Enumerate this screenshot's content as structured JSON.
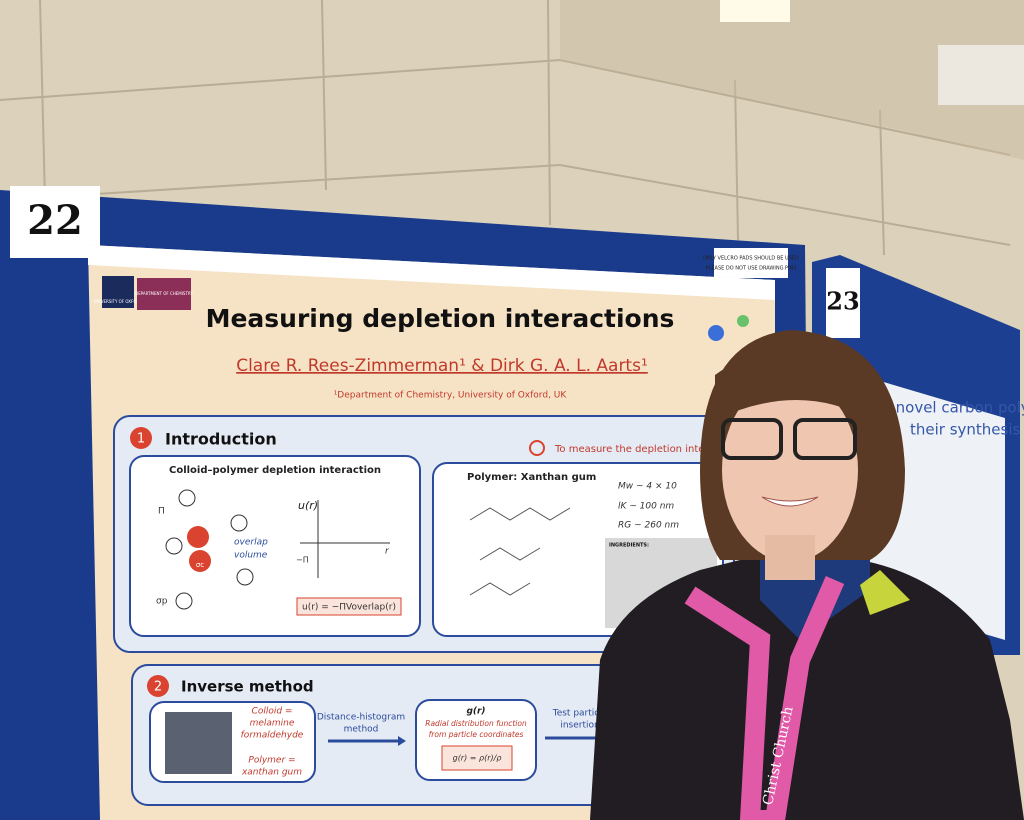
{
  "board_numbers": [
    "22",
    "23"
  ],
  "notice": [
    "ONLY VELCRO PADS SHOULD BE USED",
    "PLEASE DO NOT USE DRAWING PINS"
  ],
  "poster": {
    "logos": [
      "UNIVERSITY OF OXFORD",
      "DEPARTMENT OF CHEMISTRY"
    ],
    "title": "Measuring depletion interactions",
    "authors": "Clare R. Rees-Zimmerman¹ & Dirk G. A. L. Aarts¹",
    "affiliation": "¹Department of Chemistry, University of Oxford, UK",
    "sections": [
      {
        "number": "1",
        "title": "Introduction",
        "aim": "To measure the depletion interactio",
        "left_box": {
          "title": "Colloid–polymer depletion interaction",
          "labels": [
            "Π",
            "overlap",
            "volume",
            "σp",
            "σc",
            "u(r)",
            "−Π",
            "r"
          ],
          "equation": "u(r) = −ΠVoverlap(r)"
        },
        "right_box": {
          "title": "Polymer: Xanthan gum",
          "properties": [
            "Mw ~ 4 × 10",
            "lK ~ 100 nm",
            "RG ~ 260 nm"
          ],
          "ingredients": "INGREDIENTS:"
        }
      },
      {
        "number": "2",
        "title": "Inverse method",
        "colloid": [
          "Colloid =",
          "melamine",
          "formaldehyde"
        ],
        "polymer": [
          "Polymer =",
          "xanthan gum"
        ],
        "arrow_1": [
          "Distance-histogram",
          "method"
        ],
        "result_title": "g(r)",
        "result_text": [
          "Radial distribution function",
          "from particle coordinates"
        ],
        "result_equation": "g(r) = ρ(r)/ρ",
        "arrow_2": [
          "Test particle",
          "insertion"
        ]
      }
    ]
  },
  "neighbour_poster": [
    "s: novel carbon polymorphs",
    "their synthesis"
  ],
  "lanyard": "Christ Church"
}
